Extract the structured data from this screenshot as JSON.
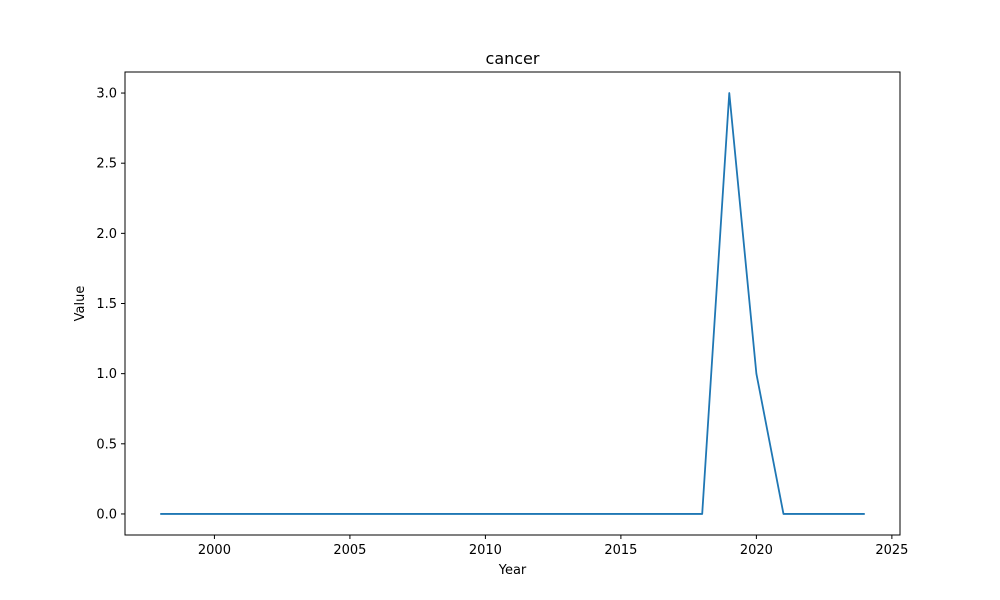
{
  "chart_data": {
    "type": "line",
    "title": "cancer",
    "xlabel": "Year",
    "ylabel": "Value",
    "xlim": [
      1996.7,
      2025.3
    ],
    "ylim": [
      -0.15,
      3.15
    ],
    "xticks": [
      2000,
      2005,
      2010,
      2015,
      2020,
      2025
    ],
    "yticks": [
      0.0,
      0.5,
      1.0,
      1.5,
      2.0,
      2.5,
      3.0
    ],
    "grid": false,
    "legend": "none",
    "series": [
      {
        "color": "#1f77b4",
        "x": [
          1998,
          1999,
          2000,
          2001,
          2002,
          2003,
          2004,
          2005,
          2006,
          2007,
          2008,
          2009,
          2010,
          2011,
          2012,
          2013,
          2014,
          2015,
          2016,
          2017,
          2018,
          2019,
          2020,
          2021,
          2022,
          2023,
          2024
        ],
        "y": [
          0,
          0,
          0,
          0,
          0,
          0,
          0,
          0,
          0,
          0,
          0,
          0,
          0,
          0,
          0,
          0,
          0,
          0,
          0,
          0,
          0,
          3,
          1,
          0,
          0,
          0,
          0
        ]
      }
    ]
  }
}
